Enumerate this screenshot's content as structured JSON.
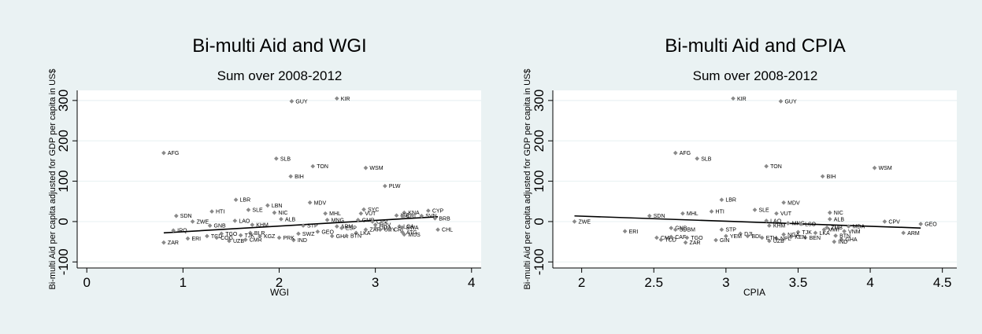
{
  "chart_data": [
    {
      "type": "scatter",
      "title": "Bi-multi Aid and WGI",
      "subtitle": "Sum over 2008-2012",
      "xlabel": "WGI",
      "ylabel": "Bi-multi Aid per capita adjusted for GDP per capita in US$",
      "xlim": [
        -0.1,
        4.1
      ],
      "ylim": [
        -115,
        325
      ],
      "xticks": [
        0,
        1,
        2,
        3,
        4
      ],
      "yticks": [
        -100,
        0,
        100,
        200,
        300
      ],
      "fit": [
        [
          0.8,
          -28
        ],
        [
          3.65,
          12
        ]
      ],
      "points": [
        {
          "label": "AFG",
          "x": 0.8,
          "y": 170
        },
        {
          "label": "GUY",
          "x": 2.13,
          "y": 298
        },
        {
          "label": "KIR",
          "x": 2.6,
          "y": 305
        },
        {
          "label": "SLB",
          "x": 1.97,
          "y": 156
        },
        {
          "label": "TON",
          "x": 2.35,
          "y": 137
        },
        {
          "label": "WSM",
          "x": 2.9,
          "y": 133
        },
        {
          "label": "BIH",
          "x": 2.12,
          "y": 112
        },
        {
          "label": "PLW",
          "x": 3.1,
          "y": 88
        },
        {
          "label": "LBR",
          "x": 1.55,
          "y": 54
        },
        {
          "label": "MDV",
          "x": 2.32,
          "y": 47
        },
        {
          "label": "LBN",
          "x": 1.88,
          "y": 40
        },
        {
          "label": "SLE",
          "x": 1.68,
          "y": 29
        },
        {
          "label": "HTI",
          "x": 1.3,
          "y": 25
        },
        {
          "label": "SYC",
          "x": 2.88,
          "y": 30
        },
        {
          "label": "NIC",
          "x": 1.95,
          "y": 22
        },
        {
          "label": "MHL",
          "x": 2.48,
          "y": 20
        },
        {
          "label": "VUT",
          "x": 2.85,
          "y": 20
        },
        {
          "label": "KNA",
          "x": 3.3,
          "y": 22
        },
        {
          "label": "CYP",
          "x": 3.55,
          "y": 27
        },
        {
          "label": "ISR",
          "x": 3.22,
          "y": 15
        },
        {
          "label": "CRI",
          "x": 3.28,
          "y": 14
        },
        {
          "label": "SVN",
          "x": 3.48,
          "y": 14
        },
        {
          "label": "BRB",
          "x": 3.62,
          "y": 8
        },
        {
          "label": "SDN",
          "x": 0.93,
          "y": 14
        },
        {
          "label": "ZWE",
          "x": 1.1,
          "y": 0
        },
        {
          "label": "LAO",
          "x": 1.54,
          "y": 2
        },
        {
          "label": "ALB",
          "x": 2.02,
          "y": 6
        },
        {
          "label": "GMB",
          "x": 2.82,
          "y": 4
        },
        {
          "label": "CPV",
          "x": 2.97,
          "y": 0
        },
        {
          "label": "GNB",
          "x": 1.28,
          "y": -10
        },
        {
          "label": "KHM",
          "x": 1.72,
          "y": -8
        },
        {
          "label": "IRQ",
          "x": 0.9,
          "y": -22
        },
        {
          "label": "TCD",
          "x": 1.25,
          "y": -36
        },
        {
          "label": "ERI",
          "x": 1.05,
          "y": -42
        },
        {
          "label": "ZAR",
          "x": 0.8,
          "y": -52
        },
        {
          "label": "UZB",
          "x": 1.48,
          "y": -48
        },
        {
          "label": "CMR",
          "x": 1.65,
          "y": -45
        },
        {
          "label": "GEO",
          "x": 2.4,
          "y": -25
        },
        {
          "label": "GHA",
          "x": 2.55,
          "y": -36
        },
        {
          "label": "IND",
          "x": 2.15,
          "y": -46
        },
        {
          "label": "ARM",
          "x": 2.6,
          "y": -12
        },
        {
          "label": "ZAF",
          "x": 2.9,
          "y": -20
        },
        {
          "label": "LKA",
          "x": 2.8,
          "y": -28
        },
        {
          "label": "ESP",
          "x": 2.65,
          "y": -16
        },
        {
          "label": "DMA",
          "x": 3.0,
          "y": -16
        },
        {
          "label": "LCA",
          "x": 3.25,
          "y": -12
        },
        {
          "label": "URY",
          "x": 3.05,
          "y": -20
        },
        {
          "label": "CRI",
          "x": 3.15,
          "y": -20
        },
        {
          "label": "ATG",
          "x": 3.28,
          "y": -26
        },
        {
          "label": "MUS",
          "x": 3.3,
          "y": -32
        },
        {
          "label": "CHL",
          "x": 3.65,
          "y": -20
        },
        {
          "label": "BWA",
          "x": 3.28,
          "y": -15
        },
        {
          "label": "HRV",
          "x": 3.0,
          "y": -8
        },
        {
          "label": "MNG",
          "x": 2.5,
          "y": 4
        },
        {
          "label": "BLR",
          "x": 1.7,
          "y": -28
        },
        {
          "label": "TGO",
          "x": 1.4,
          "y": -30
        },
        {
          "label": "COG",
          "x": 1.35,
          "y": -40
        },
        {
          "label": "PRK",
          "x": 2.0,
          "y": -40
        },
        {
          "label": "SWZ",
          "x": 2.2,
          "y": -30
        },
        {
          "label": "BTN",
          "x": 2.7,
          "y": -35
        },
        {
          "label": "KGZ",
          "x": 1.8,
          "y": -36
        },
        {
          "label": "TJK",
          "x": 1.6,
          "y": -34
        },
        {
          "label": "STP",
          "x": 2.25,
          "y": -10
        }
      ]
    },
    {
      "type": "scatter",
      "title": "Bi-multi Aid and CPIA",
      "subtitle": "Sum over 2008-2012",
      "xlabel": "CPIA",
      "ylabel": "Bi-multi Aid per capita adjusted for GDP per capita in US$",
      "xlim": [
        1.8,
        4.6
      ],
      "ylim": [
        -115,
        325
      ],
      "xticks": [
        2,
        2.5,
        3,
        3.5,
        4,
        4.5
      ],
      "yticks": [
        -100,
        0,
        100,
        200,
        300
      ],
      "fit": [
        [
          1.95,
          14
        ],
        [
          4.35,
          -16
        ]
      ],
      "points": [
        {
          "label": "KIR",
          "x": 3.05,
          "y": 305
        },
        {
          "label": "GUY",
          "x": 3.38,
          "y": 298
        },
        {
          "label": "AFG",
          "x": 2.65,
          "y": 170
        },
        {
          "label": "SLB",
          "x": 2.8,
          "y": 156
        },
        {
          "label": "TON",
          "x": 3.28,
          "y": 137
        },
        {
          "label": "WSM",
          "x": 4.03,
          "y": 133
        },
        {
          "label": "BIH",
          "x": 3.67,
          "y": 112
        },
        {
          "label": "LBR",
          "x": 2.97,
          "y": 54
        },
        {
          "label": "MDV",
          "x": 3.4,
          "y": 47
        },
        {
          "label": "SLE",
          "x": 3.2,
          "y": 29
        },
        {
          "label": "HTI",
          "x": 2.9,
          "y": 25
        },
        {
          "label": "NIC",
          "x": 3.72,
          "y": 22
        },
        {
          "label": "MHL",
          "x": 2.7,
          "y": 20
        },
        {
          "label": "VUT",
          "x": 3.35,
          "y": 20
        },
        {
          "label": "SDN",
          "x": 2.47,
          "y": 14
        },
        {
          "label": "ALB",
          "x": 3.72,
          "y": 6
        },
        {
          "label": "ZWE",
          "x": 1.95,
          "y": 0
        },
        {
          "label": "LAO",
          "x": 3.28,
          "y": 2
        },
        {
          "label": "CPV",
          "x": 4.1,
          "y": 0
        },
        {
          "label": "GEO",
          "x": 4.35,
          "y": -6
        },
        {
          "label": "MNG",
          "x": 3.43,
          "y": -4
        },
        {
          "label": "LSO",
          "x": 3.52,
          "y": -6
        },
        {
          "label": "KHM",
          "x": 3.3,
          "y": -10
        },
        {
          "label": "ERI",
          "x": 2.3,
          "y": -24
        },
        {
          "label": "GNB",
          "x": 2.62,
          "y": -16
        },
        {
          "label": "SDBM",
          "x": 2.65,
          "y": -20
        },
        {
          "label": "TGO",
          "x": 2.73,
          "y": -40
        },
        {
          "label": "ZAR",
          "x": 2.72,
          "y": -52
        },
        {
          "label": "GIN",
          "x": 2.93,
          "y": -46
        },
        {
          "label": "STP",
          "x": 2.97,
          "y": -20
        },
        {
          "label": "CMR",
          "x": 2.52,
          "y": -40
        },
        {
          "label": "TCD",
          "x": 2.55,
          "y": -45
        },
        {
          "label": "CAF",
          "x": 2.62,
          "y": -38
        },
        {
          "label": "DJI",
          "x": 3.1,
          "y": -30
        },
        {
          "label": "ARM",
          "x": 4.23,
          "y": -28
        },
        {
          "label": "GHA",
          "x": 3.8,
          "y": -44
        },
        {
          "label": "IND",
          "x": 3.75,
          "y": -50
        },
        {
          "label": "NPL",
          "x": 3.35,
          "y": -42
        },
        {
          "label": "BEN",
          "x": 3.55,
          "y": -40
        },
        {
          "label": "UZB",
          "x": 3.3,
          "y": -48
        },
        {
          "label": "BTN",
          "x": 3.76,
          "y": -35
        },
        {
          "label": "LKA",
          "x": 3.62,
          "y": -28
        },
        {
          "label": "TJK",
          "x": 3.5,
          "y": -26
        },
        {
          "label": "KEN",
          "x": 3.45,
          "y": -38
        },
        {
          "label": "MWI",
          "x": 3.68,
          "y": -20
        },
        {
          "label": "NGA",
          "x": 3.4,
          "y": -32
        },
        {
          "label": "BDI",
          "x": 3.15,
          "y": -36
        },
        {
          "label": "ETH",
          "x": 3.25,
          "y": -40
        },
        {
          "label": "VNM",
          "x": 3.82,
          "y": -24
        },
        {
          "label": "ZMB",
          "x": 3.7,
          "y": -15
        },
        {
          "label": "YEM",
          "x": 3.0,
          "y": -36
        },
        {
          "label": "MDA",
          "x": 3.85,
          "y": -12
        }
      ]
    }
  ]
}
